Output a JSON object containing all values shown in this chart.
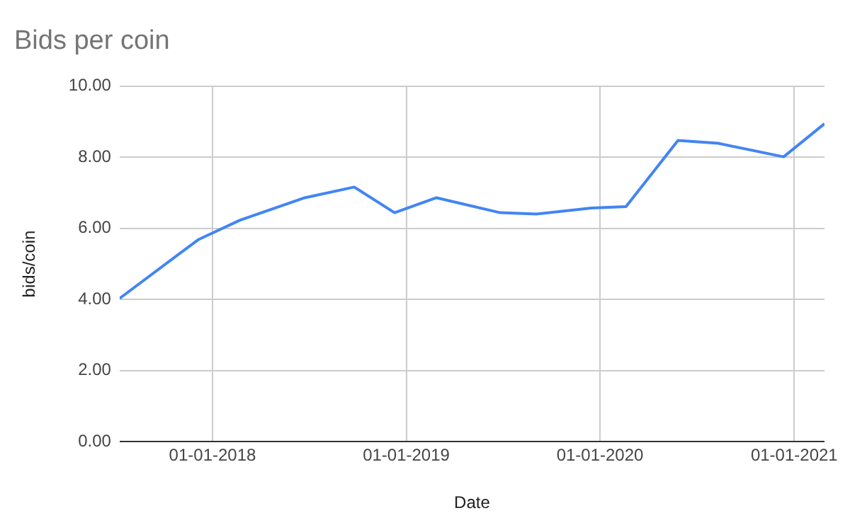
{
  "chart_data": {
    "type": "line",
    "title": "Bids per coin",
    "xlabel": "Date",
    "ylabel": "bids/coin",
    "x": [
      "2017-07-10",
      "2017-12-05",
      "2018-02-22",
      "2018-06-24",
      "2018-09-25",
      "2018-12-10",
      "2019-02-27",
      "2019-06-27",
      "2019-09-03",
      "2019-12-16",
      "2020-02-19",
      "2020-05-27",
      "2020-08-11",
      "2020-12-12",
      "2021-02-27"
    ],
    "series": [
      {
        "color": "#4285f4",
        "values": [
          4.03,
          5.68,
          6.23,
          6.86,
          7.16,
          6.44,
          6.86,
          6.44,
          6.4,
          6.57,
          6.61,
          8.47,
          8.39,
          8.01,
          8.94
        ]
      }
    ],
    "xlim": [
      "2017-07-10",
      "2021-02-27"
    ],
    "xticks": [
      {
        "value": "2018-01-01",
        "label": "01-01-2018"
      },
      {
        "value": "2019-01-01",
        "label": "01-01-2019"
      },
      {
        "value": "2020-01-01",
        "label": "01-01-2020"
      },
      {
        "value": "2021-01-01",
        "label": "01-01-2021"
      }
    ],
    "ylim": [
      0,
      10
    ],
    "yticks": [
      {
        "value": 0,
        "label": "0.00"
      },
      {
        "value": 2,
        "label": "2.00"
      },
      {
        "value": 4,
        "label": "4.00"
      },
      {
        "value": 6,
        "label": "6.00"
      },
      {
        "value": 8,
        "label": "8.00"
      },
      {
        "value": 10,
        "label": "10.00"
      }
    ],
    "grid": true,
    "legend": false,
    "marker": "none",
    "line_style": "solid"
  }
}
